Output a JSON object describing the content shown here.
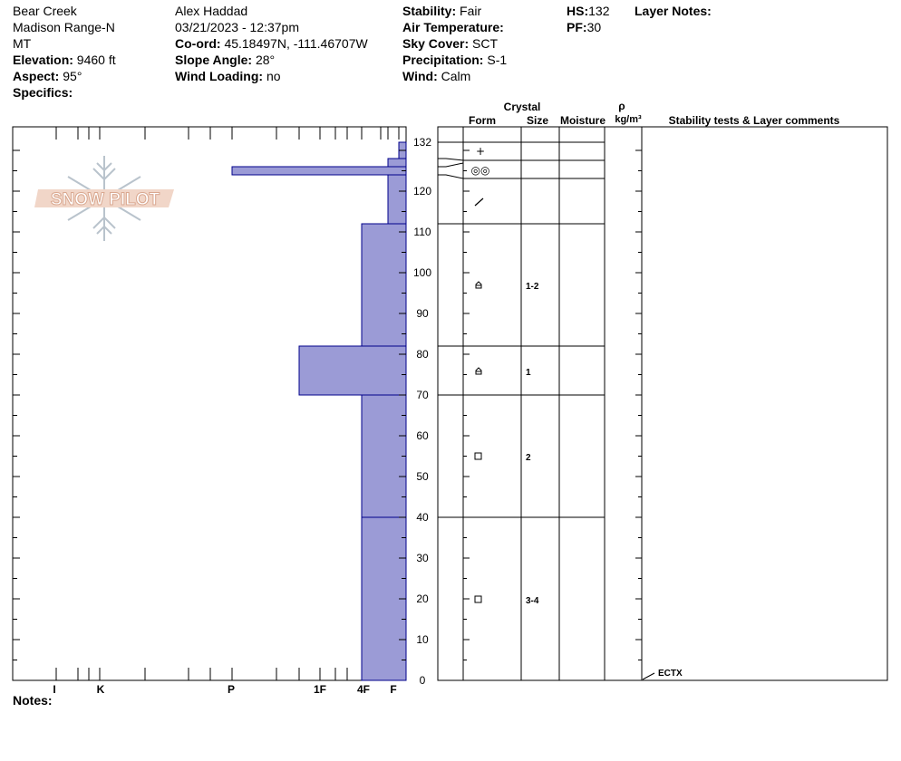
{
  "header": {
    "col1": {
      "location": "Bear Creek",
      "range": "Madison Range-N",
      "state": "MT",
      "elevation_label": "Elevation:",
      "elevation": "9460 ft",
      "aspect_label": "Aspect:",
      "aspect": "95°",
      "specifics_label": "Specifics:"
    },
    "col2": {
      "observer": "Alex Haddad",
      "datetime": "03/21/2023 - 12:37pm",
      "coord_label": "Co-ord:",
      "coord": "45.18497N, -111.46707W",
      "slope_label": "Slope Angle:",
      "slope": "28°",
      "wind_loading_label": "Wind Loading:",
      "wind_loading": "no"
    },
    "col3": {
      "stability_label": "Stability:",
      "stability": "Fair",
      "air_temp_label": "Air Temperature:",
      "air_temp": "",
      "sky_label": "Sky Cover:",
      "sky": "SCT",
      "precip_label": "Precipitation:",
      "precip": "S-1",
      "wind_label": "Wind:",
      "wind": " Calm"
    },
    "col4": {
      "hs_label": "HS:",
      "hs": "132",
      "pf_label": "PF:",
      "pf": "30"
    },
    "layer_notes_label": "Layer Notes:"
  },
  "notes_label": "Notes:",
  "logo_text": "SNOW PILOT",
  "table_headers": {
    "crystal": "Crystal",
    "form": "Form",
    "size": "Size",
    "moisture": "Moisture",
    "rho": "ρ",
    "density_unit": "kg/m³",
    "stability": "Stability tests & Layer comments"
  },
  "colors": {
    "hardness_fill": "#9b9bd6",
    "hardness_edge": "#00008b"
  },
  "chart_data": {
    "type": "bar",
    "orientation": "horizontal",
    "y_label": "",
    "ylim": [
      0,
      132
    ],
    "y_ticks": [
      0,
      10,
      20,
      30,
      40,
      50,
      60,
      70,
      80,
      90,
      100,
      110,
      120,
      132
    ],
    "hardness_scale": [
      "I",
      "K",
      "P",
      "1F",
      "4F",
      "F"
    ],
    "layers": [
      {
        "bottom": 128,
        "top": 132,
        "hardness": "F-",
        "form": "",
        "size": ""
      },
      {
        "bottom": 126,
        "top": 128,
        "hardness": "F",
        "form": "+",
        "size": ""
      },
      {
        "bottom": 124,
        "top": 126,
        "hardness": "P",
        "form": "◎◎",
        "size": ""
      },
      {
        "bottom": 112,
        "top": 124,
        "hardness": "F+",
        "form": "/",
        "size": ""
      },
      {
        "bottom": 82,
        "top": 112,
        "hardness": "4F",
        "form": "⌂",
        "size": "1-2"
      },
      {
        "bottom": 70,
        "top": 82,
        "hardness": "1F",
        "form": "⌂",
        "size": "1"
      },
      {
        "bottom": 40,
        "top": 70,
        "hardness": "4F",
        "form": "□",
        "size": "2"
      },
      {
        "bottom": 0,
        "top": 40,
        "hardness": "4F",
        "form": "□",
        "size": "3-4"
      }
    ],
    "stability_tests": [
      {
        "height": 0,
        "label": "ECTX"
      }
    ]
  }
}
